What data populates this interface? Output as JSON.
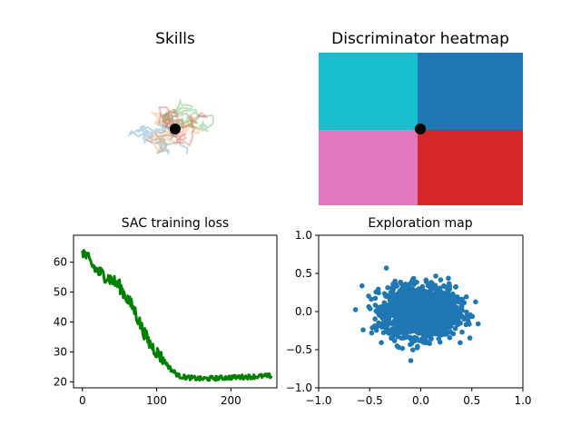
{
  "colors": {
    "skill_blue": "#1f77b4",
    "skill_orange": "#ff7f0e",
    "skill_green": "#2ca02c",
    "skill_red": "#d62728",
    "region_cyan": "#17becf",
    "region_blue": "#1f77b4",
    "region_pink": "#e377c2",
    "region_red": "#d62728",
    "loss_green": "#008000",
    "scatter_blue": "#1f77b4"
  },
  "chart_data": [
    {
      "id": "skills",
      "type": "line",
      "title": "Skills",
      "axes_visible": false,
      "start_point": [
        0,
        0
      ],
      "series": [
        {
          "color_key": "skill_blue",
          "alpha": 0.3
        },
        {
          "color_key": "skill_orange",
          "alpha": 0.3
        },
        {
          "color_key": "skill_green",
          "alpha": 0.3
        },
        {
          "color_key": "skill_red",
          "alpha": 0.3
        }
      ]
    },
    {
      "id": "discriminator",
      "type": "heatmap",
      "title": "Discriminator heatmap",
      "axes_visible": false,
      "regions": [
        {
          "quadrant": "top-left",
          "color_key": "region_cyan"
        },
        {
          "quadrant": "top-right",
          "color_key": "region_blue"
        },
        {
          "quadrant": "bottom-left",
          "color_key": "region_pink"
        },
        {
          "quadrant": "bottom-right",
          "color_key": "region_red"
        }
      ],
      "marker": [
        0,
        0
      ]
    },
    {
      "id": "sac_loss",
      "type": "line",
      "title": "SAC training loss",
      "xlim": [
        -12,
        262
      ],
      "ylim": [
        18,
        69
      ],
      "x_ticks": [
        "0",
        "100",
        "200"
      ],
      "x_tick_values": [
        0,
        100,
        200
      ],
      "y_ticks": [
        "20",
        "30",
        "40",
        "50",
        "60"
      ],
      "y_tick_values": [
        20,
        30,
        40,
        50,
        60
      ],
      "n_points": 256,
      "keypoints": [
        [
          0,
          64
        ],
        [
          10,
          60
        ],
        [
          20,
          57
        ],
        [
          40,
          54
        ],
        [
          50,
          52
        ],
        [
          60,
          48
        ],
        [
          70,
          44
        ],
        [
          80,
          38
        ],
        [
          90,
          33
        ],
        [
          100,
          30
        ],
        [
          110,
          27
        ],
        [
          120,
          24
        ],
        [
          130,
          22
        ],
        [
          140,
          21.5
        ],
        [
          160,
          21
        ],
        [
          200,
          21.5
        ],
        [
          255,
          22
        ]
      ],
      "noise": 2.2,
      "series": [
        {
          "color_key": "loss_green"
        }
      ]
    },
    {
      "id": "exploration",
      "type": "scatter",
      "title": "Exploration map",
      "xlim": [
        -1.0,
        1.0
      ],
      "ylim": [
        -1.0,
        1.0
      ],
      "x_ticks": [
        "−1.0",
        "−0.5",
        "0.0",
        "0.5",
        "1.0"
      ],
      "x_tick_values": [
        -1.0,
        -0.5,
        0.0,
        0.5,
        1.0
      ],
      "y_ticks": [
        "−1.0",
        "−0.5",
        "0.0",
        "0.5",
        "1.0"
      ],
      "y_tick_values": [
        -1.0,
        -0.5,
        0.0,
        0.5,
        1.0
      ],
      "center": [
        0,
        0
      ],
      "spread": [
        0.17,
        0.16
      ],
      "n_points": 1800,
      "series": [
        {
          "color_key": "scatter_blue"
        }
      ]
    }
  ]
}
